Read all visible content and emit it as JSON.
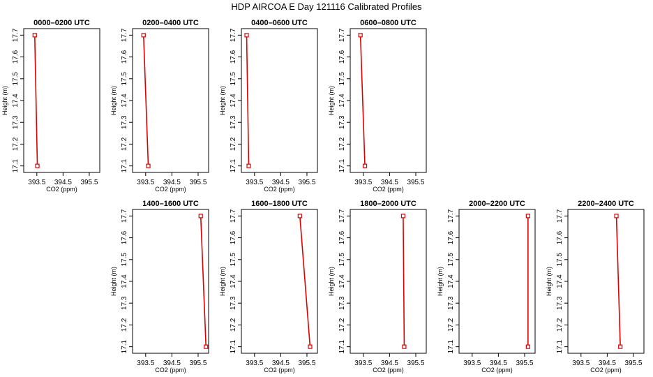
{
  "page": {
    "title": "HDP AIRCOA E  Day 121116  Calibrated Profiles"
  },
  "chart_data": [
    {
      "type": "line",
      "title": "0000–0200 UTC",
      "xlabel": "CO2 (ppm)",
      "ylabel": "Height (m)",
      "xticks": [
        "393.5",
        "394.5",
        "395.5"
      ],
      "yticks": [
        "17.1",
        "17.2",
        "17.3",
        "17.4",
        "17.5",
        "17.6",
        "17.7"
      ],
      "xlim": [
        393.0,
        395.9
      ],
      "ylim": [
        17.07,
        17.73
      ],
      "series": [
        {
          "color": "#dd0000",
          "points": [
            {
              "x": 393.42,
              "y": 17.7
            },
            {
              "x": 393.52,
              "y": 17.1
            }
          ]
        }
      ]
    },
    {
      "type": "line",
      "title": "0200–0400 UTC",
      "xlabel": "CO2 (ppm)",
      "ylabel": "Height (m)",
      "xticks": [
        "393.5",
        "394.5",
        "395.5"
      ],
      "yticks": [
        "17.1",
        "17.2",
        "17.3",
        "17.4",
        "17.5",
        "17.6",
        "17.7"
      ],
      "xlim": [
        393.0,
        395.9
      ],
      "ylim": [
        17.07,
        17.73
      ],
      "series": [
        {
          "color": "#dd0000",
          "points": [
            {
              "x": 393.42,
              "y": 17.7
            },
            {
              "x": 393.6,
              "y": 17.1
            }
          ]
        }
      ]
    },
    {
      "type": "line",
      "title": "0400–0600 UTC",
      "xlabel": "CO2 (ppm)",
      "ylabel": "Height (m)",
      "xticks": [
        "393.5",
        "394.5",
        "395.5"
      ],
      "yticks": [
        "17.1",
        "17.2",
        "17.3",
        "17.4",
        "17.5",
        "17.6",
        "17.7"
      ],
      "xlim": [
        393.0,
        395.9
      ],
      "ylim": [
        17.07,
        17.73
      ],
      "series": [
        {
          "color": "#dd0000",
          "points": [
            {
              "x": 393.2,
              "y": 17.7
            },
            {
              "x": 393.28,
              "y": 17.1
            }
          ]
        }
      ]
    },
    {
      "type": "line",
      "title": "0600–0800 UTC",
      "xlabel": "CO2 (ppm)",
      "ylabel": "Height (m)",
      "xticks": [
        "393.5",
        "394.5",
        "395.5"
      ],
      "yticks": [
        "17.1",
        "17.2",
        "17.3",
        "17.4",
        "17.5",
        "17.6",
        "17.7"
      ],
      "xlim": [
        393.0,
        395.9
      ],
      "ylim": [
        17.07,
        17.73
      ],
      "series": [
        {
          "color": "#dd0000",
          "points": [
            {
              "x": 393.39,
              "y": 17.7
            },
            {
              "x": 393.56,
              "y": 17.1
            }
          ]
        }
      ]
    },
    {
      "type": "line",
      "title": "1400–1600 UTC",
      "xlabel": "CO2 (ppm)",
      "ylabel": "Height (m)",
      "xticks": [
        "393.5",
        "394.5",
        "395.5"
      ],
      "yticks": [
        "17.1",
        "17.2",
        "17.3",
        "17.4",
        "17.5",
        "17.6",
        "17.7"
      ],
      "xlim": [
        393.0,
        395.9
      ],
      "ylim": [
        17.07,
        17.73
      ],
      "series": [
        {
          "color": "#dd0000",
          "points": [
            {
              "x": 395.6,
              "y": 17.7
            },
            {
              "x": 395.8,
              "y": 17.1
            }
          ]
        }
      ]
    },
    {
      "type": "line",
      "title": "1600–1800 UTC",
      "xlabel": "CO2 (ppm)",
      "ylabel": "Height (m)",
      "xticks": [
        "393.5",
        "394.5",
        "395.5"
      ],
      "yticks": [
        "17.1",
        "17.2",
        "17.3",
        "17.4",
        "17.5",
        "17.6",
        "17.7"
      ],
      "xlim": [
        393.0,
        395.9
      ],
      "ylim": [
        17.07,
        17.73
      ],
      "series": [
        {
          "color": "#dd0000",
          "points": [
            {
              "x": 395.23,
              "y": 17.7
            },
            {
              "x": 395.62,
              "y": 17.1
            }
          ]
        }
      ]
    },
    {
      "type": "line",
      "title": "1800–2000 UTC",
      "xlabel": "CO2 (ppm)",
      "ylabel": "Height (m)",
      "xticks": [
        "393.5",
        "394.5",
        "395.5"
      ],
      "yticks": [
        "17.1",
        "17.2",
        "17.3",
        "17.4",
        "17.5",
        "17.6",
        "17.7"
      ],
      "xlim": [
        393.0,
        395.9
      ],
      "ylim": [
        17.07,
        17.73
      ],
      "series": [
        {
          "color": "#dd0000",
          "points": [
            {
              "x": 395.02,
              "y": 17.7
            },
            {
              "x": 395.06,
              "y": 17.1
            }
          ]
        }
      ]
    },
    {
      "type": "line",
      "title": "2000–2200 UTC",
      "xlabel": "CO2 (ppm)",
      "ylabel": "Height (m)",
      "xticks": [
        "393.5",
        "394.5",
        "395.5"
      ],
      "yticks": [
        "17.1",
        "17.2",
        "17.3",
        "17.4",
        "17.5",
        "17.6",
        "17.7"
      ],
      "xlim": [
        393.0,
        395.9
      ],
      "ylim": [
        17.07,
        17.73
      ],
      "series": [
        {
          "color": "#dd0000",
          "points": [
            {
              "x": 395.63,
              "y": 17.7
            },
            {
              "x": 395.63,
              "y": 17.1
            }
          ]
        }
      ]
    },
    {
      "type": "line",
      "title": "2200–2400 UTC",
      "xlabel": "CO2 (ppm)",
      "ylabel": "Height (m)",
      "xticks": [
        "393.5",
        "394.5",
        "395.5"
      ],
      "yticks": [
        "17.1",
        "17.2",
        "17.3",
        "17.4",
        "17.5",
        "17.6",
        "17.7"
      ],
      "xlim": [
        393.0,
        395.9
      ],
      "ylim": [
        17.07,
        17.73
      ],
      "series": [
        {
          "color": "#dd0000",
          "points": [
            {
              "x": 394.85,
              "y": 17.7
            },
            {
              "x": 395.0,
              "y": 17.1
            }
          ]
        }
      ]
    }
  ]
}
